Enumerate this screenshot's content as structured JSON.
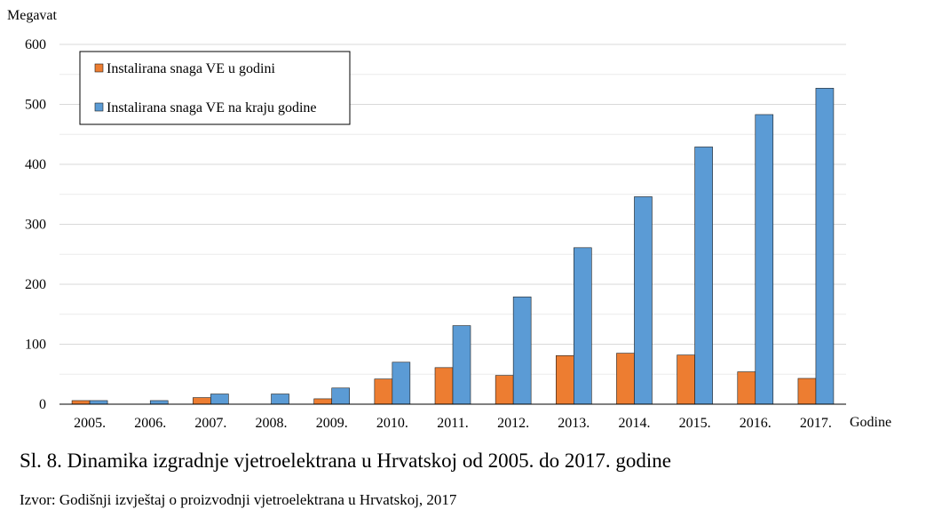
{
  "caption": "Sl. 8. Dinamika izgradnje vjetroelektrana u Hrvatskoj od 2005. do 2017. godine",
  "source": "Izvor: Godišnji izvještaj o proizvodnji vjetroelektrana u Hrvatskoj, 2017",
  "chart_data": {
    "type": "bar",
    "title": "",
    "ylabel": "Megavat",
    "xlabel": "Godine",
    "ylim": [
      0,
      600
    ],
    "yticks": [
      0,
      100,
      200,
      300,
      400,
      500,
      600
    ],
    "grid": true,
    "legend_position": "top-left",
    "categories": [
      "2005.",
      "2006.",
      "2007.",
      "2008.",
      "2009.",
      "2010.",
      "2011.",
      "2012.",
      "2013.",
      "2014.",
      "2015.",
      "2016.",
      "2017."
    ],
    "series": [
      {
        "name": "Instalirana snaga VE u godini",
        "color": "#ED7D31",
        "values": [
          6,
          0,
          11,
          0,
          9,
          42,
          61,
          48,
          81,
          85,
          82,
          54,
          43
        ]
      },
      {
        "name": "Instalirana snaga VE na kraju godine",
        "color": "#5B9BD5",
        "values": [
          6,
          6,
          17,
          17,
          27,
          70,
          131,
          179,
          261,
          346,
          429,
          483,
          527
        ]
      }
    ]
  }
}
